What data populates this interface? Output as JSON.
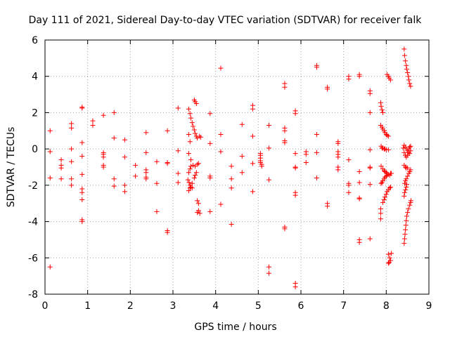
{
  "chart_data": {
    "type": "scatter",
    "title": "Day 111 of 2021, Sidereal Day-to-day VTEC variation (SDTVAR) for receiver falk",
    "xlabel": "GPS time / hours",
    "ylabel": "SDTVAR / TECUs",
    "xlim": [
      0,
      9
    ],
    "ylim": [
      -8,
      6
    ],
    "xticks": [
      0,
      1,
      2,
      3,
      4,
      5,
      6,
      7,
      8,
      9
    ],
    "yticks": [
      -8,
      -6,
      -4,
      -2,
      0,
      2,
      4,
      6
    ],
    "xtick_labels": [
      "0",
      "1",
      "2",
      "3",
      "4",
      "5",
      "6",
      "7",
      "8",
      "9"
    ],
    "ytick_labels": [
      "-8",
      "-6",
      "-4",
      "-2",
      "0",
      "2",
      "4",
      "6"
    ],
    "grid": true,
    "marker": "+",
    "color": "#ff0000",
    "series": [
      {
        "name": "SDTVAR",
        "points": [
          [
            0.12,
            1.0
          ],
          [
            0.12,
            -0.15
          ],
          [
            0.12,
            -1.6
          ],
          [
            0.12,
            -6.5
          ],
          [
            0.38,
            -0.6
          ],
          [
            0.38,
            -0.9
          ],
          [
            0.38,
            -1.05
          ],
          [
            0.38,
            -1.65
          ],
          [
            0.62,
            1.4
          ],
          [
            0.62,
            1.15
          ],
          [
            0.62,
            0.0
          ],
          [
            0.62,
            -0.7
          ],
          [
            0.62,
            -1.65
          ],
          [
            0.62,
            -2.0
          ],
          [
            0.87,
            2.3
          ],
          [
            0.87,
            2.25
          ],
          [
            0.87,
            0.35
          ],
          [
            0.87,
            -0.4
          ],
          [
            0.87,
            -1.4
          ],
          [
            0.87,
            -2.2
          ],
          [
            0.87,
            -2.4
          ],
          [
            0.87,
            -2.8
          ],
          [
            0.87,
            -3.9
          ],
          [
            0.87,
            -4.0
          ],
          [
            1.12,
            1.55
          ],
          [
            1.12,
            1.3
          ],
          [
            1.37,
            1.85
          ],
          [
            1.37,
            -0.2
          ],
          [
            1.37,
            -0.3
          ],
          [
            1.37,
            -0.45
          ],
          [
            1.37,
            -0.9
          ],
          [
            1.37,
            -1.0
          ],
          [
            1.62,
            2.0
          ],
          [
            1.62,
            0.6
          ],
          [
            1.62,
            -1.65
          ],
          [
            1.62,
            -2.05
          ],
          [
            1.87,
            0.5
          ],
          [
            1.87,
            -0.45
          ],
          [
            1.87,
            -2.0
          ],
          [
            1.87,
            -2.35
          ],
          [
            2.12,
            -0.9
          ],
          [
            2.12,
            -1.5
          ],
          [
            2.37,
            0.9
          ],
          [
            2.37,
            -0.2
          ],
          [
            2.37,
            -1.15
          ],
          [
            2.37,
            -1.3
          ],
          [
            2.37,
            -1.55
          ],
          [
            2.37,
            -1.65
          ],
          [
            2.62,
            -0.7
          ],
          [
            2.62,
            -1.9
          ],
          [
            2.62,
            -3.45
          ],
          [
            2.87,
            1.0
          ],
          [
            2.87,
            -0.75
          ],
          [
            2.87,
            -0.8
          ],
          [
            2.87,
            -4.5
          ],
          [
            2.87,
            -4.6
          ],
          [
            3.12,
            2.25
          ],
          [
            3.12,
            -0.1
          ],
          [
            3.12,
            -1.35
          ],
          [
            3.12,
            -1.85
          ],
          [
            3.37,
            2.2
          ],
          [
            3.4,
            1.95
          ],
          [
            3.42,
            1.7
          ],
          [
            3.45,
            1.45
          ],
          [
            3.47,
            1.25
          ],
          [
            3.5,
            1.05
          ],
          [
            3.52,
            0.85
          ],
          [
            3.55,
            0.7
          ],
          [
            3.57,
            0.6
          ],
          [
            3.5,
            2.7
          ],
          [
            3.52,
            2.6
          ],
          [
            3.55,
            2.5
          ],
          [
            3.37,
            0.8
          ],
          [
            3.4,
            0.4
          ],
          [
            3.37,
            -0.25
          ],
          [
            3.42,
            -0.6
          ],
          [
            3.47,
            -0.9
          ],
          [
            3.52,
            -0.95
          ],
          [
            3.57,
            -0.85
          ],
          [
            3.6,
            -0.8
          ],
          [
            3.37,
            -1.3
          ],
          [
            3.4,
            -1.1
          ],
          [
            3.42,
            -0.95
          ],
          [
            3.35,
            -1.7
          ],
          [
            3.38,
            -1.85
          ],
          [
            3.4,
            -2.0
          ],
          [
            3.42,
            -2.1
          ],
          [
            3.45,
            -2.15
          ],
          [
            3.37,
            -2.3
          ],
          [
            3.4,
            -2.15
          ],
          [
            3.45,
            -1.9
          ],
          [
            3.5,
            -1.6
          ],
          [
            3.52,
            -1.45
          ],
          [
            3.55,
            -1.3
          ],
          [
            3.57,
            -2.85
          ],
          [
            3.6,
            -3.0
          ],
          [
            3.6,
            -3.4
          ],
          [
            3.63,
            -3.55
          ],
          [
            3.57,
            -3.5
          ],
          [
            3.62,
            0.7
          ],
          [
            3.65,
            0.65
          ],
          [
            3.87,
            1.95
          ],
          [
            3.87,
            0.3
          ],
          [
            3.87,
            -1.5
          ],
          [
            3.87,
            -1.6
          ],
          [
            3.87,
            -3.45
          ],
          [
            4.12,
            4.45
          ],
          [
            4.12,
            0.8
          ],
          [
            4.12,
            -0.15
          ],
          [
            4.12,
            -3.05
          ],
          [
            4.37,
            -0.95
          ],
          [
            4.37,
            -1.65
          ],
          [
            4.37,
            -2.15
          ],
          [
            4.37,
            -4.15
          ],
          [
            4.62,
            1.35
          ],
          [
            4.62,
            -0.4
          ],
          [
            4.62,
            -1.3
          ],
          [
            4.87,
            2.4
          ],
          [
            4.87,
            2.2
          ],
          [
            4.87,
            0.7
          ],
          [
            4.87,
            -0.8
          ],
          [
            4.87,
            -2.35
          ],
          [
            5.05,
            -0.25
          ],
          [
            5.05,
            -0.35
          ],
          [
            5.05,
            -0.5
          ],
          [
            5.05,
            -0.65
          ],
          [
            5.05,
            -0.75
          ],
          [
            5.08,
            -0.95
          ],
          [
            5.08,
            -0.85
          ],
          [
            5.25,
            1.3
          ],
          [
            5.25,
            0.05
          ],
          [
            5.25,
            -1.7
          ],
          [
            5.25,
            -6.5
          ],
          [
            5.25,
            -6.85
          ],
          [
            5.62,
            3.6
          ],
          [
            5.62,
            3.4
          ],
          [
            5.62,
            1.15
          ],
          [
            5.62,
            1.0
          ],
          [
            5.62,
            0.45
          ],
          [
            5.62,
            0.35
          ],
          [
            5.62,
            -4.3
          ],
          [
            5.62,
            -4.4
          ],
          [
            5.87,
            2.1
          ],
          [
            5.87,
            1.95
          ],
          [
            5.87,
            -0.25
          ],
          [
            5.87,
            -1.0
          ],
          [
            5.87,
            -1.05
          ],
          [
            5.87,
            -2.4
          ],
          [
            5.87,
            -2.55
          ],
          [
            5.87,
            -7.4
          ],
          [
            5.87,
            -7.6
          ],
          [
            6.12,
            -0.15
          ],
          [
            6.12,
            -0.3
          ],
          [
            6.12,
            -0.75
          ],
          [
            6.37,
            4.6
          ],
          [
            6.37,
            4.5
          ],
          [
            6.37,
            0.8
          ],
          [
            6.37,
            -0.2
          ],
          [
            6.37,
            -1.6
          ],
          [
            6.62,
            3.4
          ],
          [
            6.62,
            3.3
          ],
          [
            6.62,
            -3.0
          ],
          [
            6.62,
            -3.15
          ],
          [
            6.87,
            0.4
          ],
          [
            6.87,
            0.3
          ],
          [
            6.87,
            -0.15
          ],
          [
            6.87,
            -0.3
          ],
          [
            6.87,
            -0.45
          ],
          [
            6.87,
            -1.0
          ],
          [
            6.87,
            -1.15
          ],
          [
            7.12,
            4.0
          ],
          [
            7.12,
            3.85
          ],
          [
            7.12,
            -0.6
          ],
          [
            7.12,
            -1.9
          ],
          [
            7.12,
            -2.0
          ],
          [
            7.12,
            -2.4
          ],
          [
            7.37,
            4.1
          ],
          [
            7.37,
            4.0
          ],
          [
            7.37,
            -1.25
          ],
          [
            7.37,
            -1.85
          ],
          [
            7.37,
            -2.7
          ],
          [
            7.37,
            -2.75
          ],
          [
            7.37,
            -5.0
          ],
          [
            7.37,
            -5.15
          ],
          [
            7.62,
            3.2
          ],
          [
            7.62,
            3.05
          ],
          [
            7.62,
            2.0
          ],
          [
            7.62,
            -0.05
          ],
          [
            7.62,
            -1.0
          ],
          [
            7.62,
            -1.05
          ],
          [
            7.62,
            -1.95
          ],
          [
            7.62,
            -4.95
          ],
          [
            7.87,
            2.55
          ],
          [
            7.88,
            2.35
          ],
          [
            7.9,
            2.15
          ],
          [
            7.92,
            2.0
          ],
          [
            7.87,
            1.3
          ],
          [
            7.9,
            1.2
          ],
          [
            7.92,
            1.1
          ],
          [
            7.95,
            1.0
          ],
          [
            7.97,
            0.9
          ],
          [
            8.0,
            0.8
          ],
          [
            8.02,
            0.75
          ],
          [
            8.05,
            0.7
          ],
          [
            7.88,
            0.15
          ],
          [
            7.9,
            0.05
          ],
          [
            7.92,
            0.05
          ],
          [
            7.95,
            0.0
          ],
          [
            7.97,
            0.0
          ],
          [
            8.0,
            -0.05
          ],
          [
            8.05,
            -0.05
          ],
          [
            7.88,
            -0.95
          ],
          [
            7.92,
            -1.1
          ],
          [
            7.95,
            -1.2
          ],
          [
            7.97,
            -1.25
          ],
          [
            8.0,
            -1.3
          ],
          [
            8.02,
            -1.35
          ],
          [
            8.05,
            -1.4
          ],
          [
            8.08,
            -1.45
          ],
          [
            8.1,
            -1.35
          ],
          [
            8.12,
            -1.35
          ],
          [
            7.88,
            -1.9
          ],
          [
            7.9,
            -1.85
          ],
          [
            7.92,
            -1.75
          ],
          [
            7.95,
            -1.65
          ],
          [
            7.97,
            -1.55
          ],
          [
            8.0,
            -1.5
          ],
          [
            8.02,
            -1.45
          ],
          [
            7.92,
            -2.95
          ],
          [
            7.95,
            -2.8
          ],
          [
            7.97,
            -2.65
          ],
          [
            8.0,
            -2.5
          ],
          [
            8.02,
            -2.35
          ],
          [
            8.05,
            -2.25
          ],
          [
            8.08,
            -2.15
          ],
          [
            8.1,
            -2.1
          ],
          [
            7.87,
            -3.3
          ],
          [
            7.87,
            -3.55
          ],
          [
            7.87,
            -3.85
          ],
          [
            8.02,
            4.1
          ],
          [
            8.05,
            4.0
          ],
          [
            8.07,
            3.9
          ],
          [
            8.1,
            3.8
          ],
          [
            8.05,
            -5.8
          ],
          [
            8.08,
            -6.0
          ],
          [
            8.1,
            -6.15
          ],
          [
            8.07,
            -6.25
          ],
          [
            8.05,
            -6.3
          ],
          [
            8.12,
            -5.75
          ],
          [
            8.42,
            5.5
          ],
          [
            8.43,
            5.15
          ],
          [
            8.45,
            4.85
          ],
          [
            8.47,
            4.6
          ],
          [
            8.48,
            4.4
          ],
          [
            8.5,
            4.2
          ],
          [
            8.52,
            4.0
          ],
          [
            8.53,
            3.8
          ],
          [
            8.55,
            3.6
          ],
          [
            8.57,
            3.45
          ],
          [
            8.4,
            0.05
          ],
          [
            8.42,
            -0.2
          ],
          [
            8.45,
            -0.35
          ],
          [
            8.47,
            -0.45
          ],
          [
            8.5,
            -0.35
          ],
          [
            8.52,
            -0.2
          ],
          [
            8.53,
            0.0
          ],
          [
            8.55,
            0.1
          ],
          [
            8.57,
            0.15
          ],
          [
            8.42,
            0.2
          ],
          [
            8.45,
            0.1
          ],
          [
            8.48,
            0.0
          ],
          [
            8.5,
            -0.1
          ],
          [
            8.52,
            -0.2
          ],
          [
            8.55,
            -0.25
          ],
          [
            8.57,
            -0.1
          ],
          [
            8.42,
            -0.9
          ],
          [
            8.45,
            -1.0
          ],
          [
            8.47,
            -1.05
          ],
          [
            8.5,
            -1.05
          ],
          [
            8.43,
            -1.9
          ],
          [
            8.45,
            -1.75
          ],
          [
            8.47,
            -1.65
          ],
          [
            8.5,
            -1.5
          ],
          [
            8.53,
            -1.35
          ],
          [
            8.55,
            -1.25
          ],
          [
            8.57,
            -1.15
          ],
          [
            8.42,
            -2.6
          ],
          [
            8.43,
            -2.4
          ],
          [
            8.45,
            -2.25
          ],
          [
            8.47,
            -2.1
          ],
          [
            8.48,
            -1.95
          ],
          [
            8.42,
            -5.2
          ],
          [
            8.43,
            -4.95
          ],
          [
            8.44,
            -4.7
          ],
          [
            8.45,
            -4.45
          ],
          [
            8.46,
            -4.2
          ],
          [
            8.47,
            -3.95
          ],
          [
            8.48,
            -3.7
          ],
          [
            8.5,
            -3.5
          ],
          [
            8.52,
            -3.3
          ],
          [
            8.55,
            -3.1
          ],
          [
            8.57,
            -2.95
          ],
          [
            8.58,
            -2.85
          ]
        ]
      }
    ]
  }
}
